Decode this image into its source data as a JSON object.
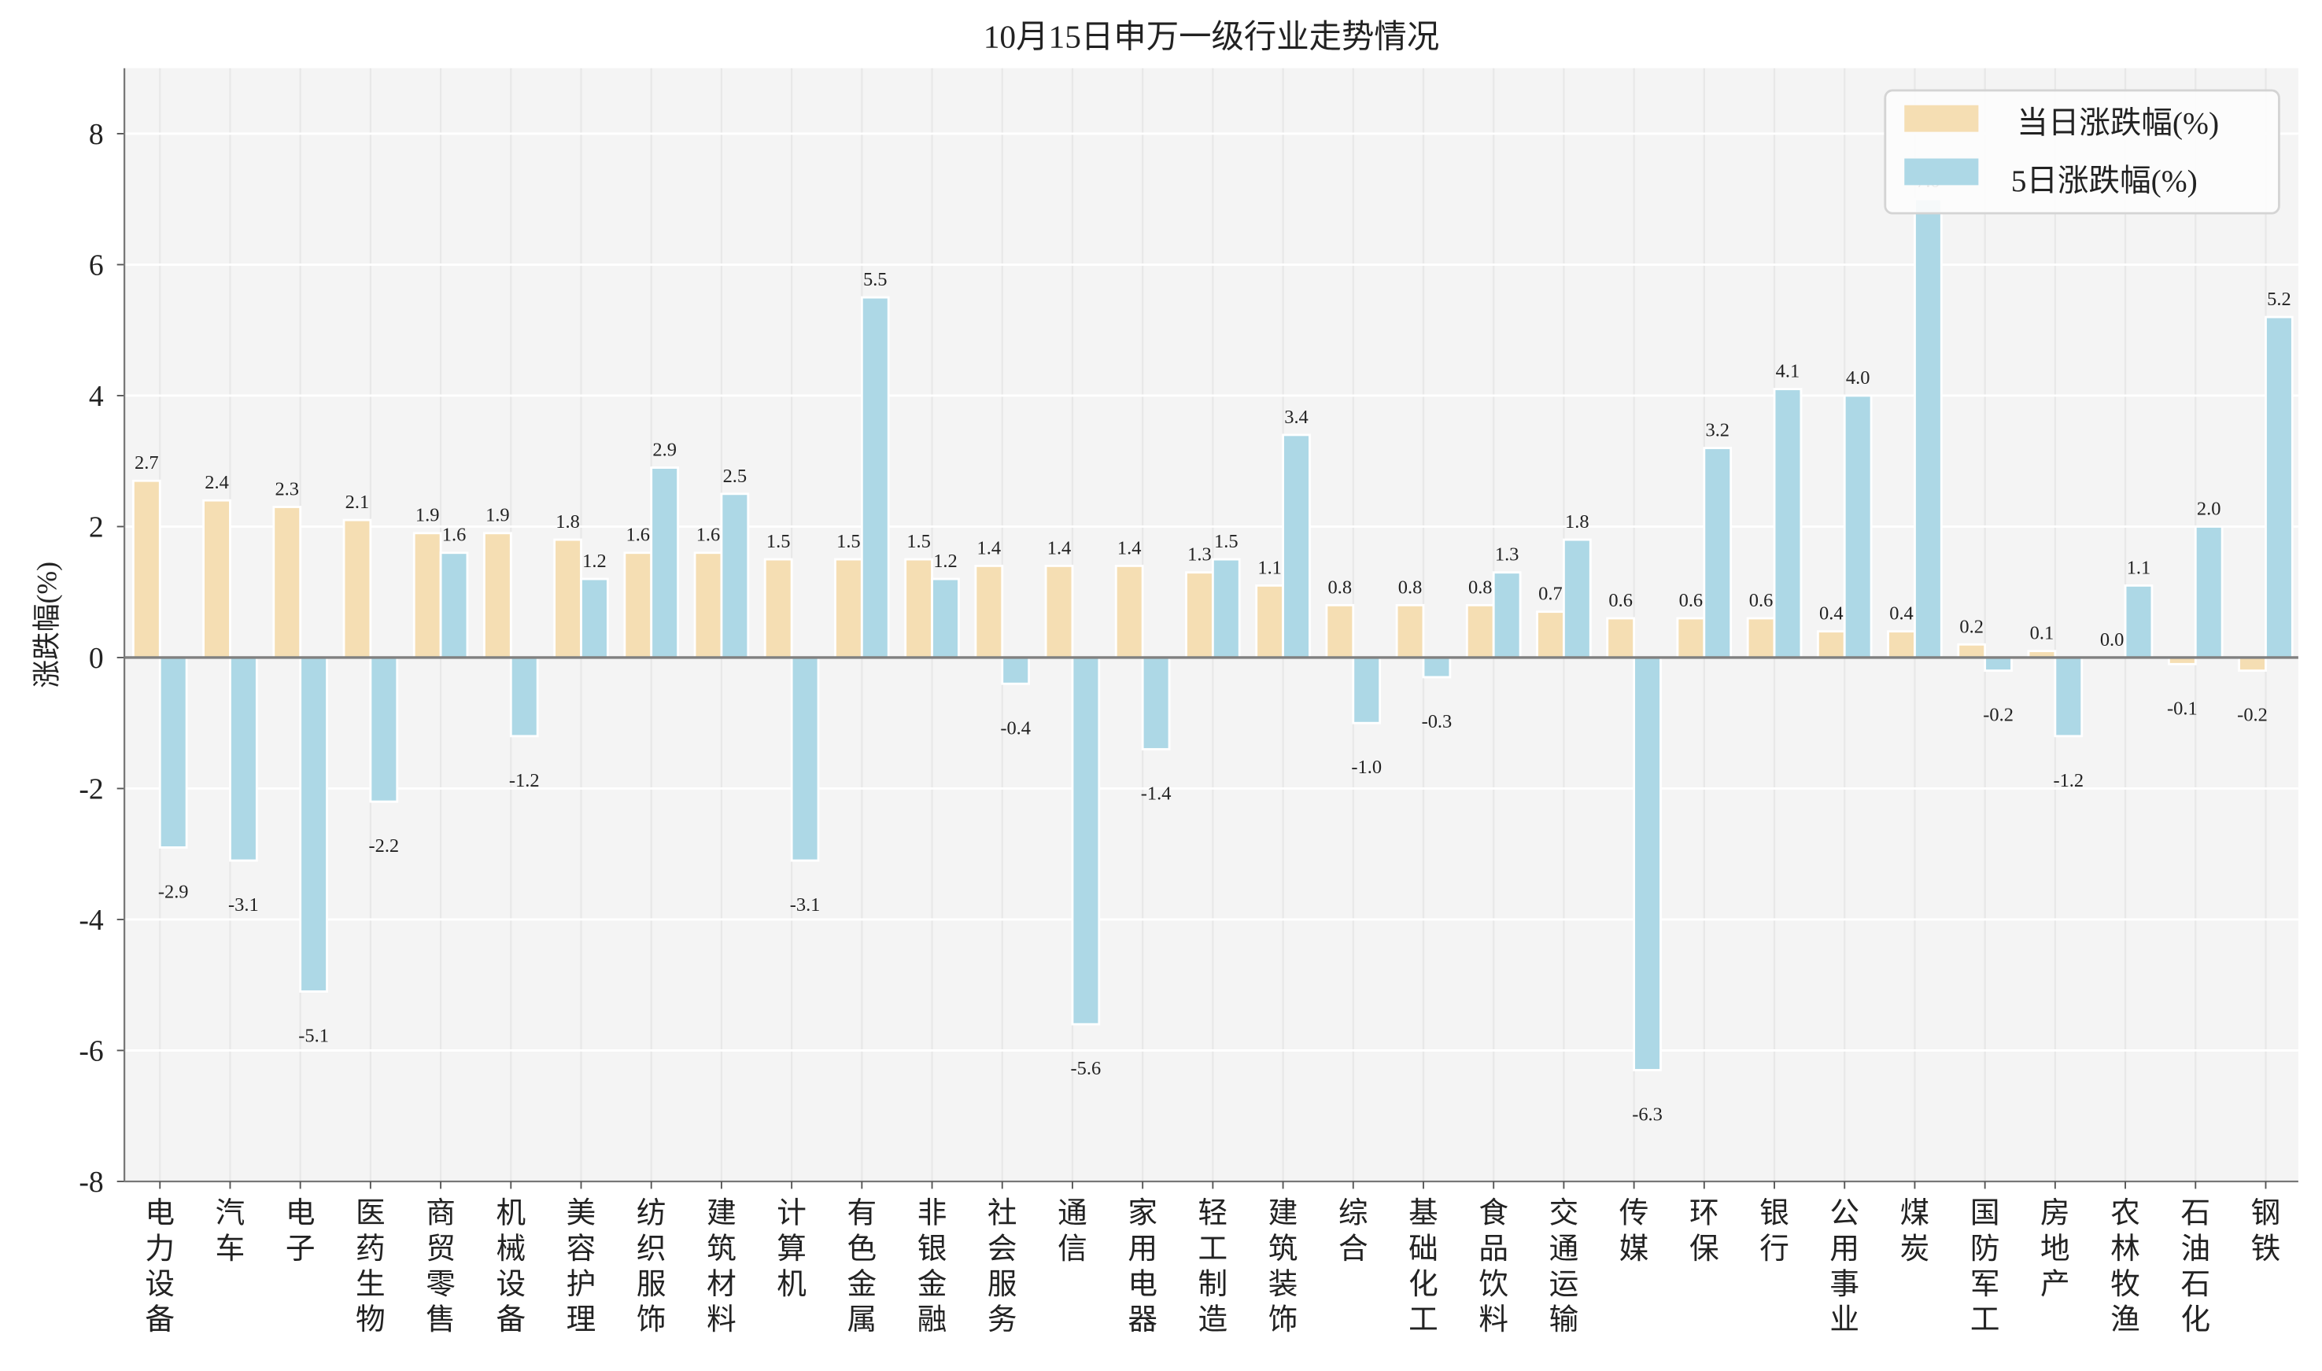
{
  "chart_data": {
    "type": "bar",
    "title": "10月15日申万一级行业走势情况",
    "xlabel": "",
    "ylabel": "涨跌幅(%)",
    "ylim": [
      -8,
      9
    ],
    "yticks": [
      -8,
      -6,
      -4,
      -2,
      0,
      2,
      4,
      6,
      8
    ],
    "grid": true,
    "legend_position": "top-right",
    "categories": [
      "电力设备",
      "汽车",
      "电子",
      "医药生物",
      "商贸零售",
      "机械设备",
      "美容护理",
      "纺织服饰",
      "建筑材料",
      "计算机",
      "有色金属",
      "非银金融",
      "社会服务",
      "通信",
      "家用电器",
      "轻工制造",
      "建筑装饰",
      "综合",
      "基础化工",
      "食品饮料",
      "交通运输",
      "传媒",
      "环保",
      "银行",
      "公用事业",
      "煤炭",
      "国防军工",
      "房地产",
      "农林牧渔",
      "石油石化",
      "钢铁"
    ],
    "series": [
      {
        "name": "当日涨跌幅(%)",
        "color": "#f5deb3",
        "values": [
          2.7,
          2.4,
          2.3,
          2.1,
          1.9,
          1.9,
          1.8,
          1.6,
          1.6,
          1.5,
          1.5,
          1.5,
          1.4,
          1.4,
          1.4,
          1.3,
          1.1,
          0.8,
          0.8,
          0.8,
          0.7,
          0.6,
          0.6,
          0.6,
          0.4,
          0.4,
          0.2,
          0.1,
          0.0,
          -0.1,
          -0.2
        ]
      },
      {
        "name": "5日涨跌幅(%)",
        "color": "#add8e6",
        "values": [
          -2.9,
          -3.1,
          -5.1,
          -2.2,
          1.6,
          -1.2,
          1.2,
          2.9,
          2.5,
          -3.1,
          5.5,
          1.2,
          -0.4,
          -5.6,
          -1.4,
          1.5,
          3.4,
          -1.0,
          -0.3,
          1.3,
          1.8,
          -6.3,
          3.2,
          4.1,
          4.0,
          7.0,
          -0.2,
          -1.2,
          1.1,
          2.0,
          5.2
        ]
      }
    ],
    "plot_background": "#f4f4f4"
  }
}
